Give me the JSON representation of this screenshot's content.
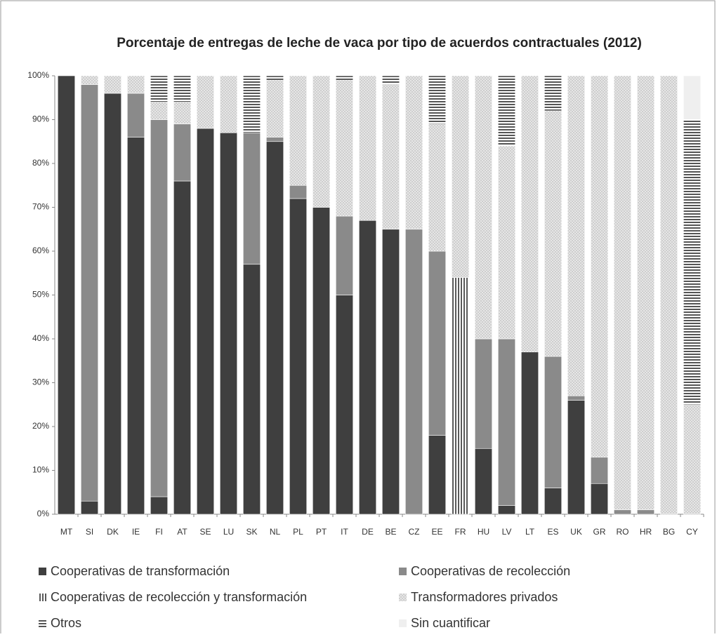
{
  "chart_data": {
    "type": "stacked_bar",
    "title": "Porcentaje de entregas de leche de vaca por tipo de acuerdos contractuales (2012)",
    "categories": [
      "MT",
      "SI",
      "DK",
      "IE",
      "FI",
      "AT",
      "SE",
      "LU",
      "SK",
      "NL",
      "PL",
      "PT",
      "IT",
      "DE",
      "BE",
      "CZ",
      "EE",
      "FR",
      "HU",
      "LV",
      "LT",
      "ES",
      "UK",
      "GR",
      "RO",
      "HR",
      "BG",
      "CY"
    ],
    "series": [
      {
        "name": "Cooperativas de transformación",
        "color": "#3f3f3f",
        "pattern": "solid",
        "values": [
          100,
          3,
          96,
          86,
          4,
          76,
          88,
          87,
          57,
          85,
          72,
          70,
          50,
          67,
          65,
          0,
          18,
          0,
          15,
          2,
          37,
          6,
          26,
          7,
          0,
          0,
          0,
          0
        ]
      },
      {
        "name": "Cooperativas de recolección",
        "color": "#8a8a8a",
        "pattern": "solid",
        "values": [
          0,
          95,
          0,
          10,
          86,
          13,
          0,
          0,
          30,
          1,
          3,
          0,
          18,
          0,
          0,
          65,
          42,
          0,
          25,
          38,
          0,
          30,
          1,
          6,
          1,
          1,
          0,
          0
        ]
      },
      {
        "name": "Cooperativas de recolección y transformación",
        "color": "#595959",
        "pattern": "vertical-stripes",
        "values": [
          0,
          0,
          0,
          0,
          0,
          0,
          0,
          0,
          0,
          0,
          0,
          0,
          0,
          0,
          0,
          0,
          0,
          54,
          0,
          0,
          0,
          0,
          0,
          0,
          0,
          0,
          0,
          0
        ]
      },
      {
        "name": "Transformadores privados",
        "color": "#bdbdbd",
        "pattern": "dots",
        "values": [
          0,
          2,
          4,
          4,
          4,
          5,
          12,
          13,
          0,
          13,
          25,
          30,
          31,
          33,
          33,
          35,
          29,
          46,
          60,
          44,
          63,
          56,
          73,
          87,
          99,
          99,
          100,
          25
        ]
      },
      {
        "name": "Otros",
        "color": "#555555",
        "pattern": "horizontal-stripes",
        "values": [
          0,
          0,
          0,
          0,
          6,
          6,
          0,
          0,
          13,
          1,
          0,
          0,
          1,
          0,
          2,
          0,
          11,
          0,
          0,
          16,
          0,
          8,
          0,
          0,
          0,
          0,
          0,
          65
        ]
      },
      {
        "name": "Sin cuantificar",
        "color": "#efefef",
        "pattern": "solid",
        "values": [
          0,
          0,
          0,
          0,
          0,
          0,
          0,
          0,
          0,
          0,
          0,
          0,
          0,
          0,
          0,
          0,
          0,
          0,
          0,
          0,
          0,
          0,
          0,
          0,
          0,
          0,
          0,
          10
        ]
      }
    ],
    "ylim": [
      0,
      100
    ],
    "yticks": [
      {
        "value": 0,
        "label": "0%"
      },
      {
        "value": 10,
        "label": "10%"
      },
      {
        "value": 20,
        "label": "20%"
      },
      {
        "value": 30,
        "label": "30%"
      },
      {
        "value": 40,
        "label": "40%"
      },
      {
        "value": 50,
        "label": "50%"
      },
      {
        "value": 60,
        "label": "60%"
      },
      {
        "value": 70,
        "label": "70%"
      },
      {
        "value": 80,
        "label": "80%"
      },
      {
        "value": 90,
        "label": "90%"
      },
      {
        "value": 100,
        "label": "100%"
      }
    ]
  }
}
